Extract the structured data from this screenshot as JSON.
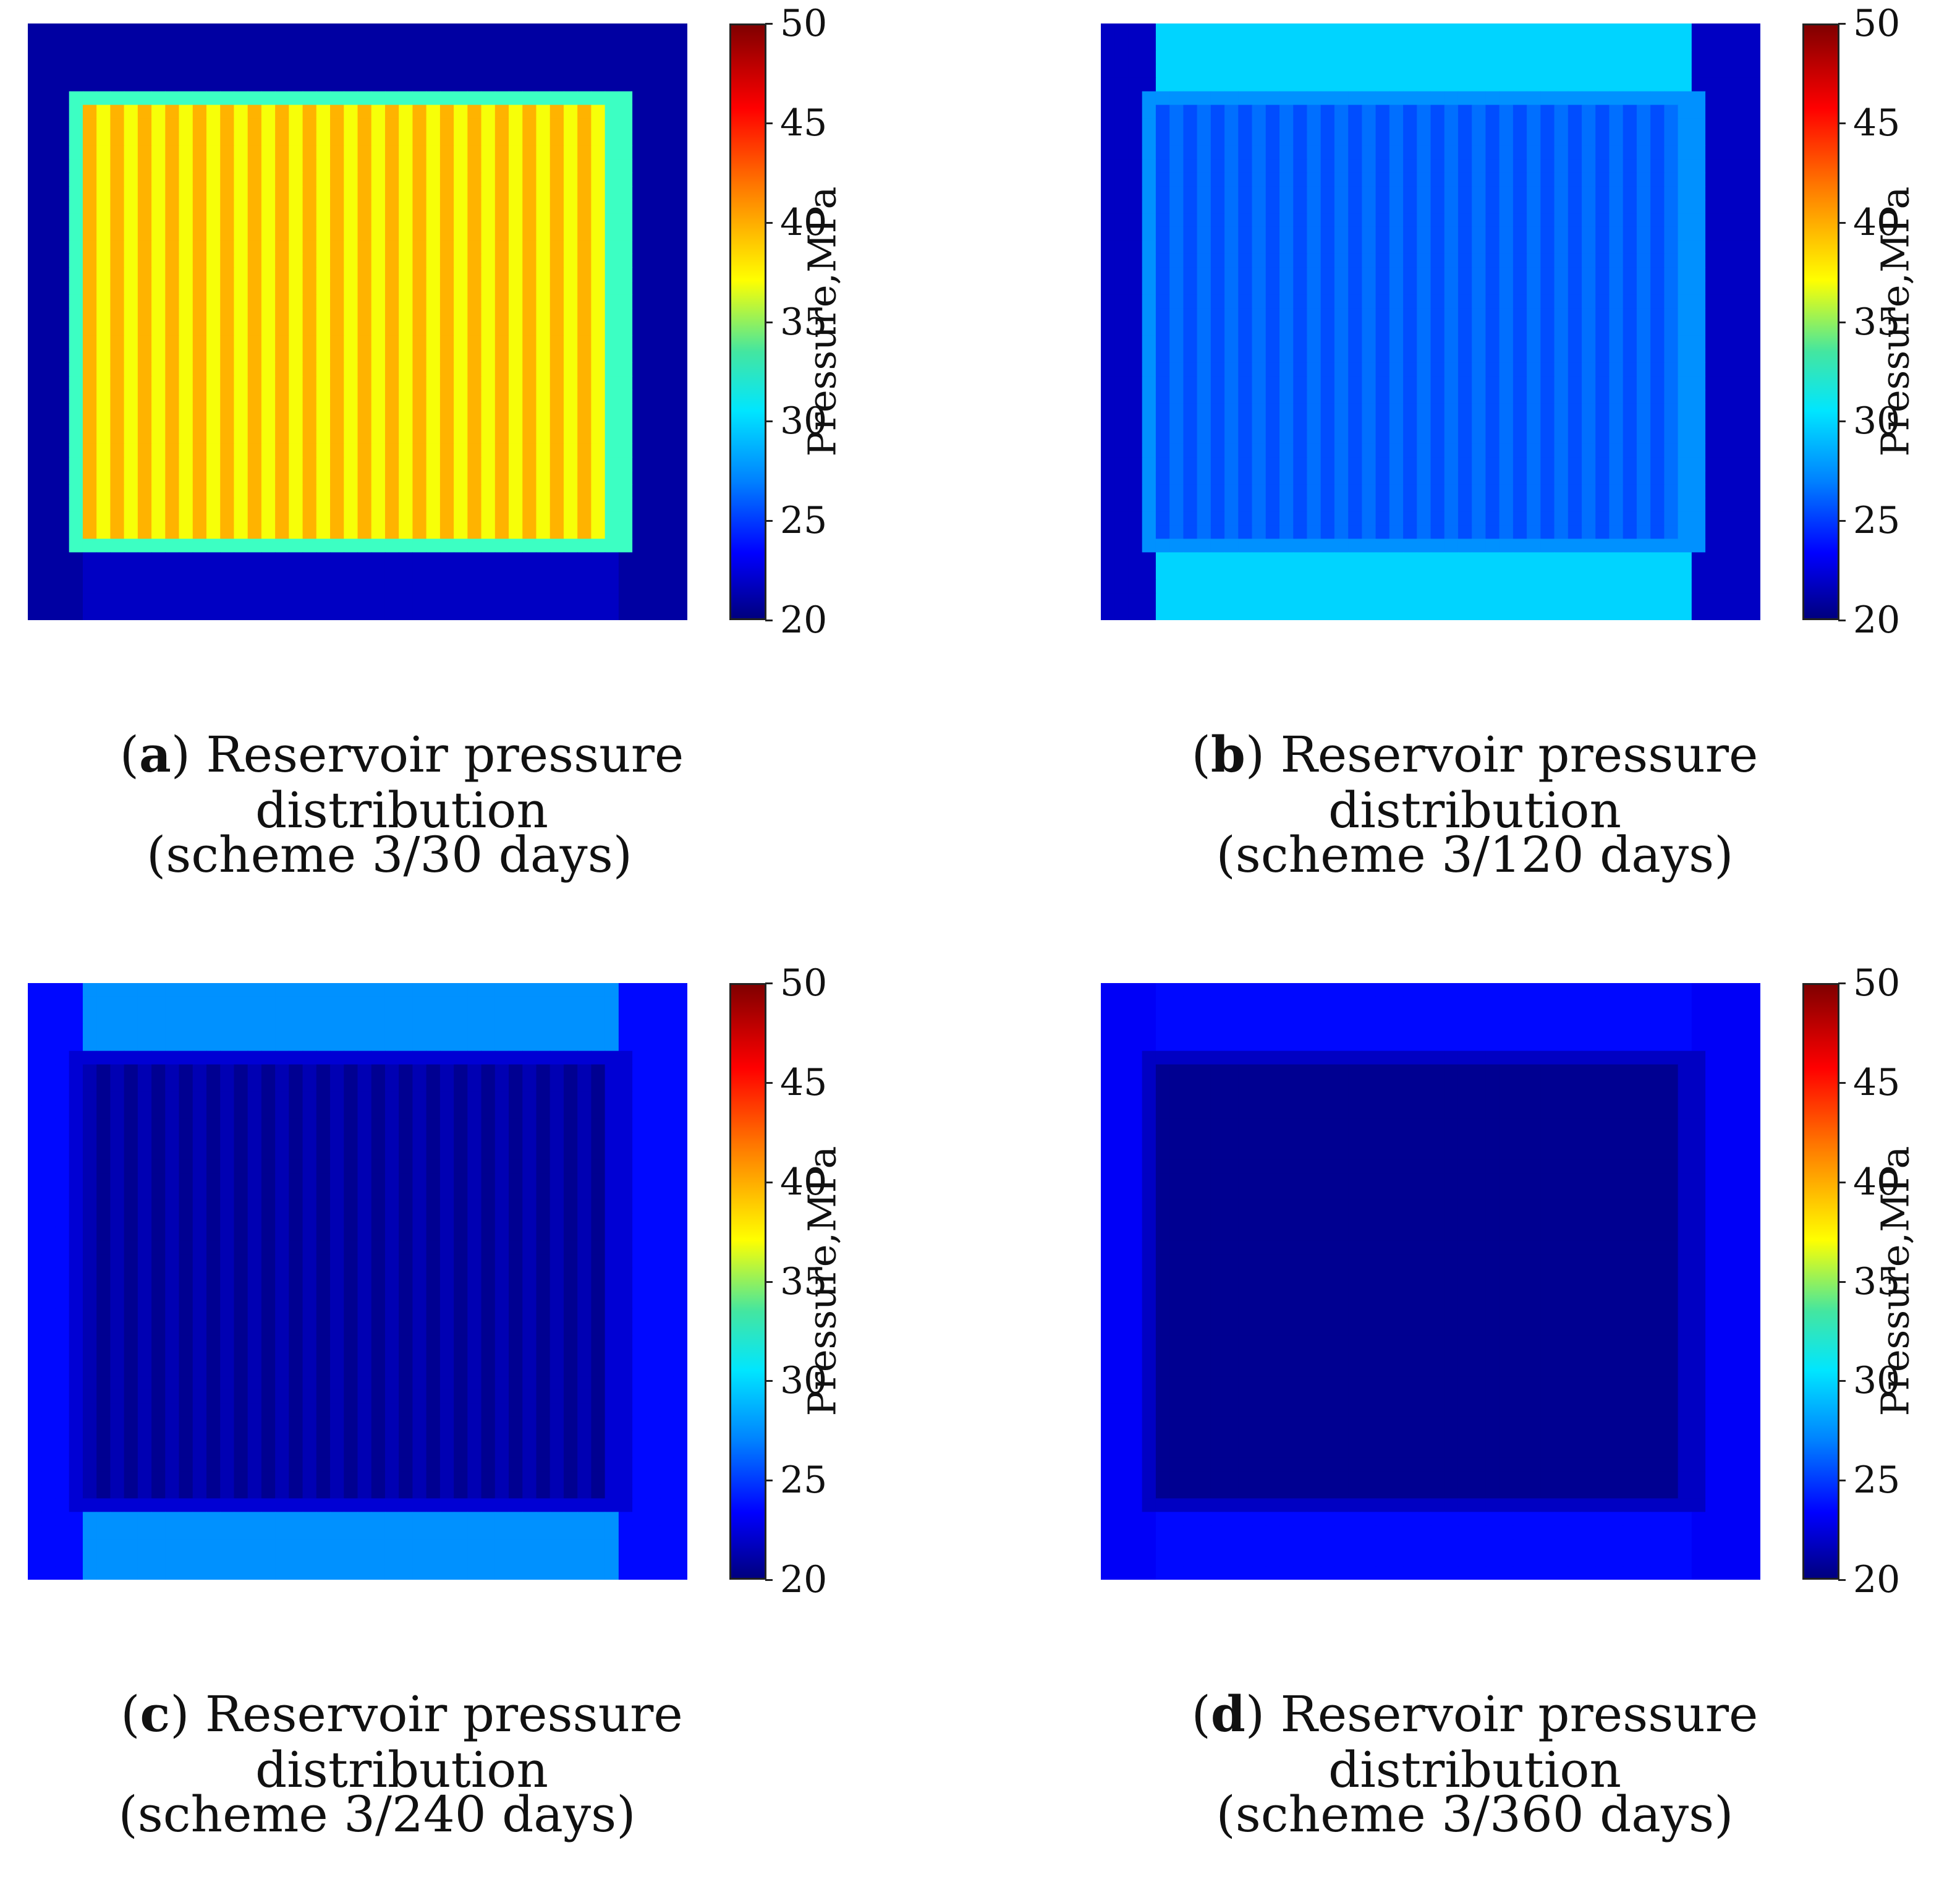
{
  "chart_data": [
    {
      "type": "heatmap",
      "panel_letter": "a",
      "title": "Reservoir pressure distribution",
      "subtitle": "(scheme 3/30 days)",
      "colorbar": {
        "label": "Pressure,MPa",
        "min": 20,
        "max": 50,
        "ticks": [
          "50",
          "45",
          "40",
          "35",
          "30",
          "25",
          "20"
        ]
      },
      "field": {
        "edge": 21,
        "ring": 33,
        "inner": 38.5,
        "stripe": 41,
        "top_band": 21,
        "bottom_band": 22
      }
    },
    {
      "type": "heatmap",
      "panel_letter": "b",
      "title": "Reservoir pressure distribution",
      "subtitle": "(scheme 3/120 days)",
      "colorbar": {
        "label": "Pressure,MPa",
        "min": 20,
        "max": 50,
        "ticks": [
          "50",
          "45",
          "40",
          "35",
          "30",
          "25",
          "20"
        ]
      },
      "field": {
        "edge": 22,
        "ring": 28,
        "inner": 27,
        "stripe": 26,
        "top_band": 30,
        "bottom_band": 30
      }
    },
    {
      "type": "heatmap",
      "panel_letter": "c",
      "title": "Reservoir pressure distribution",
      "subtitle": "(scheme 3/240 days)",
      "colorbar": {
        "label": "Pressure,MPa",
        "min": 20,
        "max": 50,
        "ticks": [
          "50",
          "45",
          "40",
          "35",
          "30",
          "25",
          "20"
        ]
      },
      "field": {
        "edge": 24,
        "ring": 22.5,
        "inner": 20.5,
        "stripe": 21.5,
        "top_band": 28,
        "bottom_band": 28
      }
    },
    {
      "type": "heatmap",
      "panel_letter": "d",
      "title": "Reservoir pressure distribution",
      "subtitle": "(scheme 3/360 days)",
      "colorbar": {
        "label": "Pressure,MPa",
        "min": 20,
        "max": 50,
        "ticks": [
          "50",
          "45",
          "40",
          "35",
          "30",
          "25",
          "20"
        ]
      },
      "field": {
        "edge": 23.5,
        "ring": 22,
        "inner": 20.5,
        "stripe": 20.5,
        "top_band": 24,
        "bottom_band": 24
      }
    }
  ]
}
